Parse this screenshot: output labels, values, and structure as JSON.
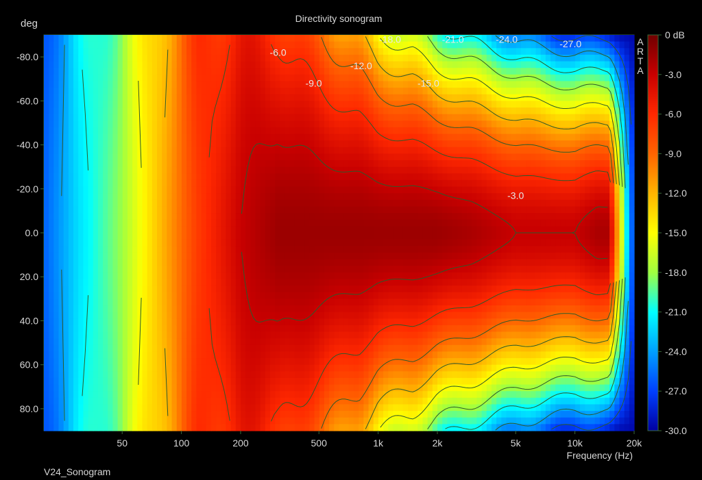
{
  "chart_data": {
    "type": "heatmap",
    "title": "Directivity sonogram",
    "xlabel": "Frequency (Hz)",
    "ylabel": "deg",
    "x_scale": "log",
    "xlim": [
      20,
      20000
    ],
    "ylim": [
      -90,
      90
    ],
    "x_ticks": [
      {
        "value": 50,
        "label": "50"
      },
      {
        "value": 100,
        "label": "100"
      },
      {
        "value": 200,
        "label": "200"
      },
      {
        "value": 500,
        "label": "500"
      },
      {
        "value": 1000,
        "label": "1k"
      },
      {
        "value": 2000,
        "label": "2k"
      },
      {
        "value": 5000,
        "label": "5k"
      },
      {
        "value": 10000,
        "label": "10k"
      },
      {
        "value": 20000,
        "label": "20k"
      }
    ],
    "y_ticks": [
      {
        "value": -80,
        "label": "-80.0"
      },
      {
        "value": -60,
        "label": "-60.0"
      },
      {
        "value": -40,
        "label": "-40.0"
      },
      {
        "value": -20,
        "label": "-20.0"
      },
      {
        "value": 0,
        "label": "0.0"
      },
      {
        "value": 20,
        "label": "20.0"
      },
      {
        "value": 40,
        "label": "40.0"
      },
      {
        "value": 60,
        "label": "60.0"
      },
      {
        "value": 80,
        "label": "80.0"
      }
    ],
    "colorbar": {
      "min": -30,
      "max": 0,
      "ticks": [
        {
          "value": 0,
          "label": "0 dB"
        },
        {
          "value": -3,
          "label": "-3.0"
        },
        {
          "value": -6,
          "label": "-6.0"
        },
        {
          "value": -9,
          "label": "-9.0"
        },
        {
          "value": -12,
          "label": "-12.0"
        },
        {
          "value": -15,
          "label": "-15.0"
        },
        {
          "value": -18,
          "label": "-18.0"
        },
        {
          "value": -21,
          "label": "-21.0"
        },
        {
          "value": -24,
          "label": "-24.0"
        },
        {
          "value": -27,
          "label": "-27.0"
        },
        {
          "value": -30,
          "label": "-30.0"
        }
      ],
      "colors": [
        "#700000",
        "#c80000",
        "#ff2800",
        "#ff6400",
        "#ffb400",
        "#ffff00",
        "#a0ff40",
        "#00ffff",
        "#00a0ff",
        "#0040ff",
        "#0000a0"
      ]
    },
    "contour_labels": [
      {
        "freq": 310,
        "deg": -82,
        "label": "-6.0"
      },
      {
        "freq": 470,
        "deg": -68,
        "label": "-9.0"
      },
      {
        "freq": 820,
        "deg": -76,
        "label": "-12.0"
      },
      {
        "freq": 1800,
        "deg": -68,
        "label": "-15.0"
      },
      {
        "freq": 1150,
        "deg": -88,
        "label": "-18.0"
      },
      {
        "freq": 2400,
        "deg": -88,
        "label": "-21.0"
      },
      {
        "freq": 4500,
        "deg": -88,
        "label": "-24.0"
      },
      {
        "freq": 9500,
        "deg": -86,
        "label": "-27.0"
      },
      {
        "freq": 5000,
        "deg": -17,
        "label": "-3.0"
      }
    ],
    "directivity_profile": {
      "freq": [
        20,
        30,
        50,
        80,
        120,
        200,
        310,
        500,
        800,
        1000,
        1500,
        2000,
        3000,
        5000,
        8000,
        10000,
        13000,
        15000,
        18000,
        20000
      ],
      "level_at_0deg": [
        -26,
        -22,
        -18,
        -12,
        -7,
        -3,
        -1.5,
        -1.5,
        -1.5,
        -1.5,
        -1.5,
        -1.5,
        -2,
        -3,
        -3,
        -3,
        -2,
        -2,
        -20,
        -28
      ],
      "level_at_90deg": [
        -26,
        -22,
        -18,
        -12,
        -7,
        -5,
        -6,
        -9,
        -12,
        -15,
        -17,
        -20,
        -22,
        -25,
        -27,
        -28,
        -28,
        -28,
        -29,
        -30
      ]
    },
    "side_label": "ARTA",
    "footer_label": "V24_Sonogram"
  }
}
